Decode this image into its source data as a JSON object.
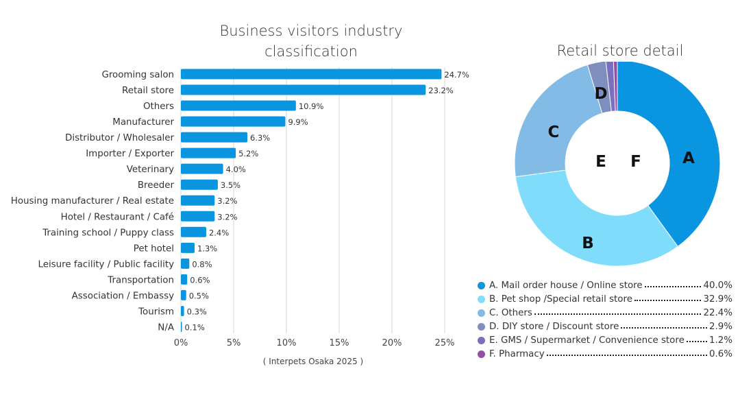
{
  "bar_chart": {
    "title_line1": "Business visitors industry",
    "title_line2": "classification",
    "caption": "( Interpets Osaka 2025 )"
  },
  "pie_chart": {
    "title": "Retail store detail"
  },
  "colors": {
    "bar": "#0a95e0",
    "grid": "#d6d6d6",
    "A": "#0a95e0",
    "B": "#7fdcfa",
    "C": "#82bbe6",
    "D": "#7e8fbf",
    "E": "#7b6fbf",
    "F": "#944fa6"
  },
  "chart_data": [
    {
      "type": "bar",
      "orientation": "horizontal",
      "title": "Business visitors industry classification",
      "categories": [
        "Grooming salon",
        "Retail store",
        "Others",
        "Manufacturer",
        "Distributor / Wholesaler",
        "Importer / Exporter",
        "Veterinary",
        "Breeder",
        "Housing manufacturer / Real estate",
        "Hotel / Restaurant / Café",
        "Training school / Puppy class",
        "Pet hotel",
        "Leisure facility / Public facility",
        "Transportation",
        "Association / Embassy",
        "Tourism",
        "N/A"
      ],
      "values": [
        24.7,
        23.2,
        10.9,
        9.9,
        6.3,
        5.2,
        4.0,
        3.5,
        3.2,
        3.2,
        2.4,
        1.3,
        0.8,
        0.6,
        0.5,
        0.3,
        0.1
      ],
      "value_labels": [
        "24.7%",
        "23.2%",
        "10.9%",
        "9.9%",
        "6.3%",
        "5.2%",
        "4.0%",
        "3.5%",
        "3.2%",
        "3.2%",
        "2.4%",
        "1.3%",
        "0.8%",
        "0.6%",
        "0.5%",
        "0.3%",
        "0.1%"
      ],
      "xlim": [
        0,
        25
      ],
      "xticks": [
        0,
        5,
        10,
        15,
        20,
        25
      ],
      "xtick_labels": [
        "0%",
        "5%",
        "10%",
        "15%",
        "20%",
        "25%"
      ],
      "grid": true,
      "caption": "( Interpets Osaka 2025 )"
    },
    {
      "type": "pie",
      "donut": true,
      "title": "Retail store detail",
      "slices": [
        {
          "letter": "A",
          "label": "A. Mail order house / Online store",
          "value": 40.0,
          "value_label": "40.0%",
          "color_key": "A"
        },
        {
          "letter": "B",
          "label": "B. Pet shop /Special retail store",
          "value": 32.9,
          "value_label": "32.9%",
          "color_key": "B"
        },
        {
          "letter": "C",
          "label": "C. Others",
          "value": 22.4,
          "value_label": "22.4%",
          "color_key": "C"
        },
        {
          "letter": "D",
          "label": "D. DIY store / Discount store",
          "value": 2.9,
          "value_label": "2.9%",
          "color_key": "D"
        },
        {
          "letter": "E",
          "label": "E. GMS / Supermarket / Convenience store",
          "value": 1.2,
          "value_label": "1.2%",
          "color_key": "E"
        },
        {
          "letter": "F",
          "label": "F. Pharmacy",
          "value": 0.6,
          "value_label": "0.6%",
          "color_key": "F"
        }
      ]
    }
  ]
}
